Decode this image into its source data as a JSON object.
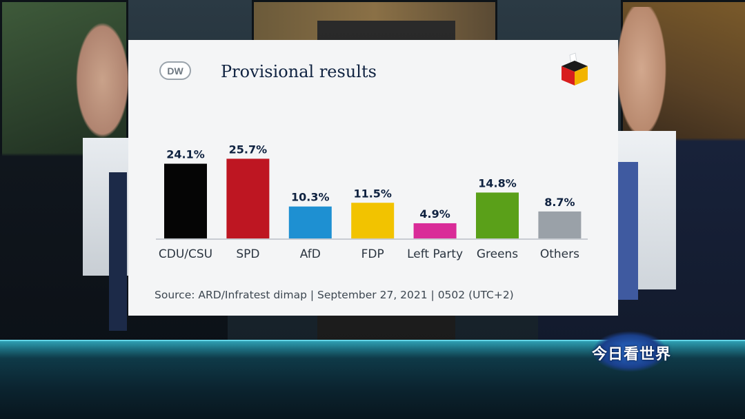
{
  "card": {
    "logo_text": "DW",
    "title": "Provisional results",
    "source": "Source: ARD/Infratest dimap | September 27, 2021 | 0502 (UTC+2)"
  },
  "broadcast": {
    "channel_logo_text": "今日看世界"
  },
  "colors": {
    "cdu_csu": "#050505",
    "spd": "#be1622",
    "afd": "#1e90d2",
    "fdp": "#f2c300",
    "left_party": "#d92c98",
    "greens": "#5aa019",
    "others": "#9aa1a8"
  },
  "chart_data": {
    "type": "bar",
    "title": "Provisional results",
    "xlabel": "",
    "ylabel": "",
    "ylim": [
      0,
      30
    ],
    "grid": false,
    "legend": "none",
    "categories": [
      "CDU/CSU",
      "SPD",
      "AfD",
      "FDP",
      "Left Party",
      "Greens",
      "Others"
    ],
    "values": [
      24.1,
      25.7,
      10.3,
      11.5,
      4.9,
      14.8,
      8.7
    ],
    "value_labels": [
      "24.1%",
      "25.7%",
      "10.3%",
      "11.5%",
      "4.9%",
      "14.8%",
      "8.7%"
    ],
    "bar_colors": [
      "#050505",
      "#be1622",
      "#1e90d2",
      "#f2c300",
      "#d92c98",
      "#5aa019",
      "#9aa1a8"
    ]
  }
}
